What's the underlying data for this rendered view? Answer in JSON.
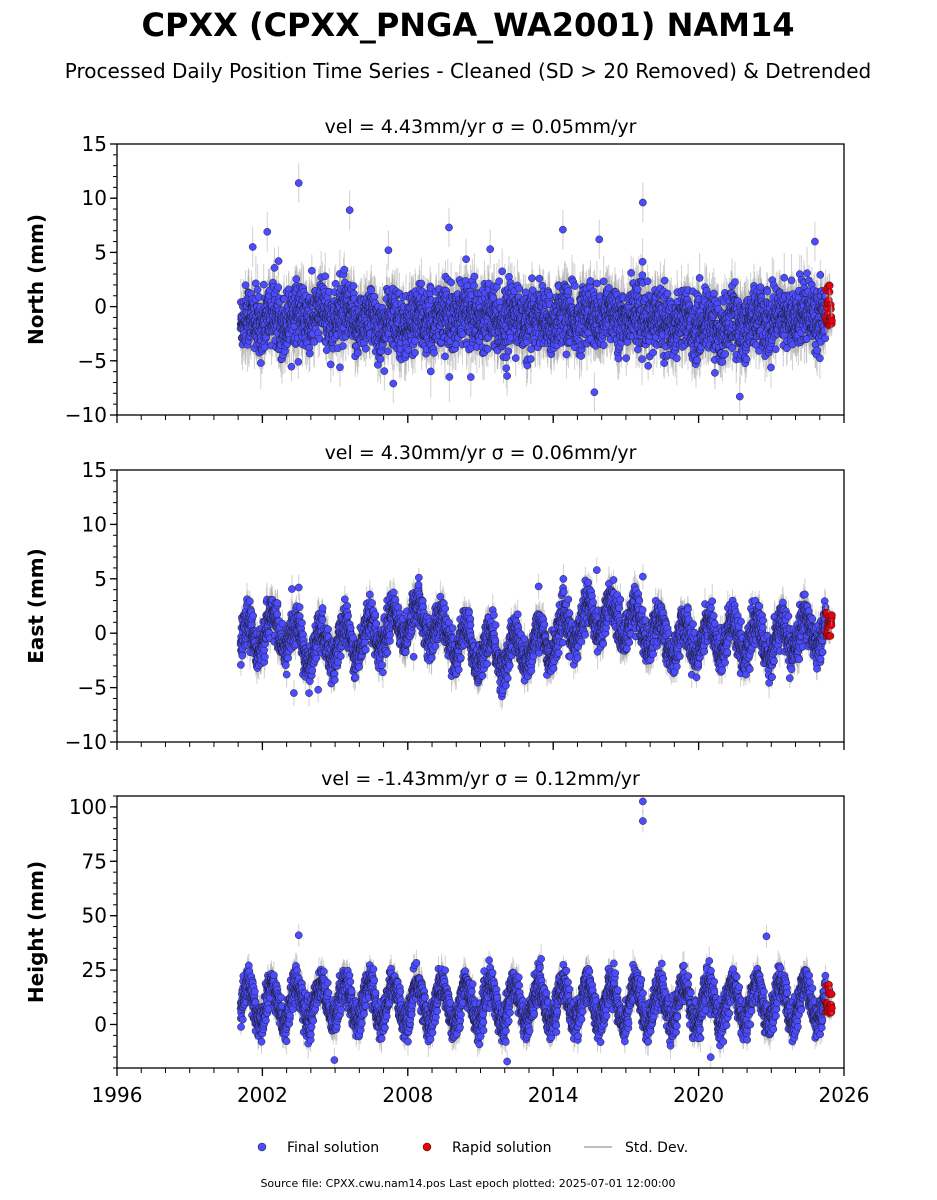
{
  "title": "CPXX (CPXX_PNGA_WA2001) NAM14",
  "subtitle": "Processed Daily Position Time Series - Cleaned (SD > 20 Removed) & Detrended",
  "footer": "Source file: CPXX.cwu.nam14.pos  Last epoch plotted: 2025-07-01 12:00:00",
  "legend": {
    "placement": "bottom-center",
    "final": "Final solution",
    "rapid": "Rapid solution",
    "std": "Std. Dev."
  },
  "colors": {
    "final": "#4b4bff",
    "rapid": "#e8000b",
    "std": "#aaaaaa",
    "edge": "#1a1a1a"
  },
  "chart_data": [
    {
      "type": "scatter",
      "name": "north",
      "title": "vel = 4.43mm/yr   σ = 0.05mm/yr",
      "ylabel": "North (mm)",
      "xlim": [
        1996,
        2026
      ],
      "ylim": [
        -10,
        15
      ],
      "yticks": [
        -10,
        -5,
        0,
        5,
        10,
        15
      ],
      "xticks": [
        1996,
        2002,
        2008,
        2014,
        2020,
        2026
      ],
      "xticklabels": [
        "",
        "",
        "",
        "",
        "",
        ""
      ],
      "data_start": 2001.1,
      "data_end": 2025.5,
      "rapid_start": 2025.25,
      "rapid_end": 2025.5,
      "trend": [
        [
          2001.1,
          -1.4
        ],
        [
          2003.0,
          -1.0
        ],
        [
          2005.0,
          -0.8
        ],
        [
          2007.0,
          -1.6
        ],
        [
          2009.0,
          -1.2
        ],
        [
          2011.0,
          -0.6
        ],
        [
          2013.0,
          -1.3
        ],
        [
          2015.0,
          -1.0
        ],
        [
          2017.0,
          -0.9
        ],
        [
          2019.0,
          -1.4
        ],
        [
          2021.0,
          -1.8
        ],
        [
          2023.0,
          -1.1
        ],
        [
          2025.5,
          -0.3
        ]
      ],
      "seasonal_amp": 0.6,
      "scatter_sd": 1.4,
      "outliers": [
        [
          2003.5,
          11.4
        ],
        [
          2005.6,
          8.9
        ],
        [
          2017.7,
          9.6
        ],
        [
          2009.7,
          7.3
        ],
        [
          2002.2,
          6.9
        ],
        [
          2014.4,
          7.1
        ],
        [
          2015.9,
          6.2
        ],
        [
          2001.6,
          5.5
        ],
        [
          2007.2,
          5.2
        ],
        [
          2011.4,
          5.3
        ],
        [
          2024.8,
          6.0
        ],
        [
          2015.7,
          -7.9
        ],
        [
          2021.7,
          -8.3
        ],
        [
          2005.2,
          -5.6
        ],
        [
          2007.4,
          -7.1
        ],
        [
          2010.6,
          -6.5
        ],
        [
          2012.1,
          -6.4
        ]
      ],
      "rapid_range": [
        -1.8,
        2.0
      ]
    },
    {
      "type": "scatter",
      "name": "east",
      "title": "vel = 4.30mm/yr   σ = 0.06mm/yr",
      "ylabel": "East (mm)",
      "xlim": [
        1996,
        2026
      ],
      "ylim": [
        -10,
        15
      ],
      "yticks": [
        -10,
        -5,
        0,
        5,
        10,
        15
      ],
      "xticks": [
        1996,
        2002,
        2008,
        2014,
        2020,
        2026
      ],
      "xticklabels": [
        "",
        "",
        "",
        "",
        "",
        ""
      ],
      "data_start": 2001.1,
      "data_end": 2025.5,
      "rapid_start": 2025.25,
      "rapid_end": 2025.5,
      "trend": [
        [
          2001.1,
          -1.0
        ],
        [
          2002.5,
          0.5
        ],
        [
          2004.0,
          -1.5
        ],
        [
          2006.0,
          -0.5
        ],
        [
          2008.5,
          1.5
        ],
        [
          2010.0,
          -0.8
        ],
        [
          2012.0,
          -2.0
        ],
        [
          2014.0,
          -0.6
        ],
        [
          2015.8,
          1.8
        ],
        [
          2017.5,
          0.8
        ],
        [
          2019.0,
          -0.8
        ],
        [
          2021.0,
          -0.2
        ],
        [
          2023.0,
          -0.8
        ],
        [
          2025.5,
          0.6
        ]
      ],
      "seasonal_amp": 1.6,
      "scatter_sd": 0.9,
      "outliers": [
        [
          2003.5,
          4.2
        ],
        [
          2015.8,
          5.8
        ],
        [
          2017.7,
          5.2
        ],
        [
          2013.4,
          4.3
        ],
        [
          2003.3,
          -5.5
        ],
        [
          2004.3,
          -5.2
        ],
        [
          2003.0,
          -3.8
        ]
      ],
      "rapid_range": [
        -0.3,
        1.9
      ]
    },
    {
      "type": "scatter",
      "name": "height",
      "title": "vel = -1.43mm/yr   σ = 0.12mm/yr",
      "ylabel": "Height (mm)",
      "xlim": [
        1996,
        2026
      ],
      "ylim": [
        -20,
        105
      ],
      "yticks": [
        0,
        25,
        50,
        75,
        100
      ],
      "xticks": [
        1996,
        2002,
        2008,
        2014,
        2020,
        2026
      ],
      "xticklabels": [
        "1996",
        "2002",
        "2008",
        "2014",
        "2020",
        "2026"
      ],
      "data_start": 2001.1,
      "data_end": 2025.5,
      "rapid_start": 2025.25,
      "rapid_end": 2025.5,
      "trend": [
        [
          2001.1,
          9
        ],
        [
          2005.0,
          11
        ],
        [
          2010.0,
          9
        ],
        [
          2015.0,
          10
        ],
        [
          2020.0,
          9
        ],
        [
          2025.5,
          11
        ]
      ],
      "seasonal_amp": 9.0,
      "scatter_sd": 4.0,
      "outliers": [
        [
          2017.7,
          102.5
        ],
        [
          2017.7,
          93.5
        ],
        [
          2003.5,
          41
        ],
        [
          2022.8,
          40.5
        ],
        [
          2012.1,
          -17
        ],
        [
          2020.5,
          -15
        ]
      ],
      "rapid_range": [
        4,
        19
      ]
    }
  ]
}
